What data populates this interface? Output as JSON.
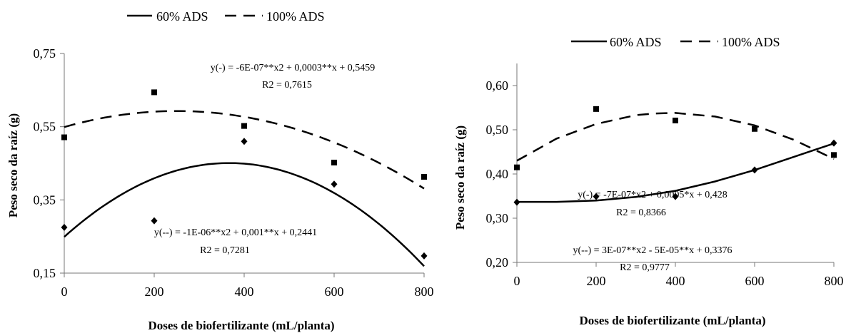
{
  "chart_data": [
    {
      "type": "scatter",
      "xlabel": "Doses de biofertilizante (mL/planta)",
      "ylabel": "Peso seco da raíz (g)",
      "x_ticks": [
        "0",
        "200",
        "400",
        "600",
        "800"
      ],
      "y_ticks": [
        "0,15",
        "0,35",
        "0,55",
        "0,75"
      ],
      "xlim": [
        0,
        800
      ],
      "ylim": [
        0.15,
        0.75
      ],
      "legend": {
        "position": "top",
        "entries": [
          {
            "label": "60% ADS",
            "style": "solid"
          },
          {
            "label": "100% ADS",
            "style": "dashed"
          }
        ]
      },
      "series": [
        {
          "name": "60% ADS",
          "marker": "diamond",
          "x": [
            0,
            200,
            400,
            600,
            800
          ],
          "y": [
            0.275,
            0.293,
            0.51,
            0.393,
            0.197
          ],
          "fit": {
            "a": -1.5e-06,
            "b": 0.0011,
            "c": 0.249
          }
        },
        {
          "name": "100% ADS",
          "marker": "square",
          "x": [
            0,
            200,
            400,
            600,
            800
          ],
          "y": [
            0.521,
            0.644,
            0.552,
            0.452,
            0.413
          ],
          "fit": {
            "a": -7e-07,
            "b": 0.00035,
            "c": 0.549
          }
        }
      ],
      "annotations": [
        {
          "lines": [
            "y(-) = -6E-07**x2 + 0,0003**x + 0,5459",
            "R2 = 0,7615"
          ]
        },
        {
          "lines": [
            "y(--) = -1E-06**x2 + 0,001**x + 0,2441",
            "R2 = 0,7281"
          ]
        }
      ]
    },
    {
      "type": "scatter",
      "xlabel": "Doses de biofertilizante (mL/planta)",
      "ylabel": "Peso seco da raíz (g)",
      "x_ticks": [
        "0",
        "200",
        "400",
        "600",
        "800"
      ],
      "y_ticks": [
        "0,20",
        "0,30",
        "0,40",
        "0,50",
        "0,60"
      ],
      "xlim": [
        0,
        800
      ],
      "ylim": [
        0.2,
        0.65
      ],
      "legend": {
        "position": "top",
        "entries": [
          {
            "label": "60% ADS",
            "style": "solid"
          },
          {
            "label": "100% ADS",
            "style": "dashed"
          }
        ]
      },
      "series": [
        {
          "name": "60% ADS",
          "marker": "diamond",
          "x": [
            0,
            200,
            400,
            600,
            800
          ],
          "y": [
            0.336,
            0.349,
            0.349,
            0.409,
            0.47
          ],
          "fit": {
            "a": 3e-07,
            "b": -5e-05,
            "c": 0.3376,
            "pts": [
              [
                0,
                0.337
              ],
              [
                100,
                0.337
              ],
              [
                200,
                0.34
              ],
              [
                300,
                0.348
              ],
              [
                400,
                0.362
              ],
              [
                500,
                0.383
              ],
              [
                600,
                0.409
              ],
              [
                700,
                0.439
              ],
              [
                800,
                0.469
              ]
            ]
          }
        },
        {
          "name": "100% ADS",
          "marker": "square",
          "x": [
            0,
            200,
            400,
            600,
            800
          ],
          "y": [
            0.415,
            0.547,
            0.521,
            0.502,
            0.443
          ],
          "fit": {
            "a": -7e-07,
            "b": 0.0005,
            "c": 0.428,
            "pts": [
              [
                0,
                0.43
              ],
              [
                100,
                0.48
              ],
              [
                200,
                0.513
              ],
              [
                300,
                0.533
              ],
              [
                350,
                0.537
              ],
              [
                400,
                0.538
              ],
              [
                500,
                0.53
              ],
              [
                600,
                0.51
              ],
              [
                700,
                0.477
              ],
              [
                800,
                0.434
              ]
            ]
          }
        }
      ],
      "annotations": [
        {
          "lines": [
            "y(-) = -7E-07*x2 + 0,0005*x + 0,428",
            "R2 = 0,8366"
          ]
        },
        {
          "lines": [
            "y(--) = 3E-07**x2 - 5E-05**x + 0,3376",
            "R2 = 0,9777"
          ]
        }
      ]
    }
  ]
}
